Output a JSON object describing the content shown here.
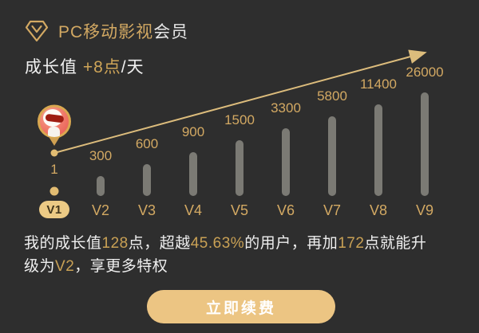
{
  "header": {
    "brand": "PC移动影视",
    "suffix": "会员",
    "icon": "diamond-check-icon"
  },
  "growth": {
    "prefix": "成长值 ",
    "highlight": "+8点",
    "suffix": "/天"
  },
  "chart": {
    "current_level": {
      "label": "V1",
      "value": "1"
    },
    "levels": [
      {
        "label": "V2",
        "value": "300"
      },
      {
        "label": "V3",
        "value": "600"
      },
      {
        "label": "V4",
        "value": "900"
      },
      {
        "label": "V5",
        "value": "1500"
      },
      {
        "label": "V6",
        "value": "3300"
      },
      {
        "label": "V7",
        "value": "5800"
      },
      {
        "label": "V8",
        "value": "11400"
      },
      {
        "label": "V9",
        "value": "26000"
      }
    ],
    "marker_icon": "user-avatar-pin"
  },
  "chart_data": {
    "type": "bar",
    "categories": [
      "V1",
      "V2",
      "V3",
      "V4",
      "V5",
      "V6",
      "V7",
      "V8",
      "V9"
    ],
    "values": [
      1,
      300,
      600,
      900,
      1500,
      3300,
      5800,
      11400,
      26000
    ],
    "title": "成长值 +8点/天",
    "xlabel": "",
    "ylabel": "",
    "current_level": "V1",
    "legend": "none",
    "grid": false,
    "trend_arrow": "diagonal gold arrow rising from V1 dot to above V9"
  },
  "summary": {
    "full_text": "我的成长值128点，超越45.63%的用户，再加172点就能升级为V2，享更多特权",
    "lines": [
      {
        "segments": [
          {
            "text": "我的成长值",
            "gold": false
          },
          {
            "text": "128",
            "gold": true
          },
          {
            "text": "点，超越",
            "gold": false
          },
          {
            "text": "45.63%",
            "gold": true
          },
          {
            "text": "的用户，再加",
            "gold": false
          },
          {
            "text": "172",
            "gold": true
          },
          {
            "text": "点就能升",
            "gold": false
          }
        ]
      },
      {
        "segments": [
          {
            "text": "级为",
            "gold": false
          },
          {
            "text": "V2",
            "gold": true
          },
          {
            "text": "，享更多特权",
            "gold": false
          }
        ]
      }
    ]
  },
  "cta": {
    "label": "立即续费"
  },
  "colors": {
    "background": "#2e2e2e",
    "gold_text": "#d3a963",
    "arrow": "#dcbc7c",
    "bar": "#7b7a74",
    "badge_bg": "#ecca85",
    "badge_text": "#42361c",
    "button_bg": "#ecc583",
    "white_text": "#efefef"
  }
}
